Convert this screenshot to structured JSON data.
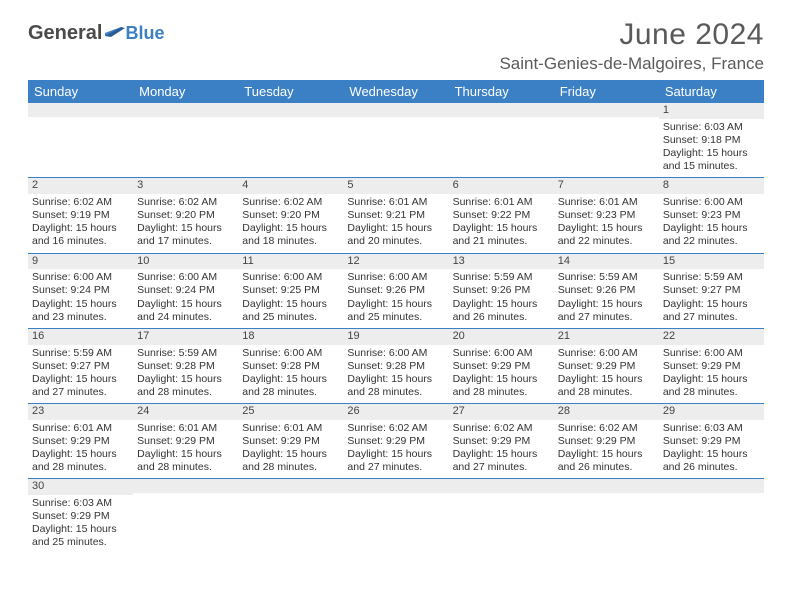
{
  "brand": {
    "general": "General",
    "blue": "Blue"
  },
  "title": "June 2024",
  "location": "Saint-Genies-de-Malgoires, France",
  "colors": {
    "header_bg": "#3b7fc4",
    "header_text": "#ffffff",
    "daynum_bg": "#ededed",
    "cell_border": "#3b7fc4",
    "page_bg": "#ffffff",
    "body_text": "#333333",
    "title_text": "#5a5a5a"
  },
  "columns": [
    "Sunday",
    "Monday",
    "Tuesday",
    "Wednesday",
    "Thursday",
    "Friday",
    "Saturday"
  ],
  "weeks": [
    [
      null,
      null,
      null,
      null,
      null,
      null,
      {
        "n": "1",
        "sr": "6:03 AM",
        "ss": "9:18 PM",
        "dh": 15,
        "dm": 15
      }
    ],
    [
      {
        "n": "2",
        "sr": "6:02 AM",
        "ss": "9:19 PM",
        "dh": 15,
        "dm": 16
      },
      {
        "n": "3",
        "sr": "6:02 AM",
        "ss": "9:20 PM",
        "dh": 15,
        "dm": 17
      },
      {
        "n": "4",
        "sr": "6:02 AM",
        "ss": "9:20 PM",
        "dh": 15,
        "dm": 18
      },
      {
        "n": "5",
        "sr": "6:01 AM",
        "ss": "9:21 PM",
        "dh": 15,
        "dm": 20
      },
      {
        "n": "6",
        "sr": "6:01 AM",
        "ss": "9:22 PM",
        "dh": 15,
        "dm": 21
      },
      {
        "n": "7",
        "sr": "6:01 AM",
        "ss": "9:23 PM",
        "dh": 15,
        "dm": 22
      },
      {
        "n": "8",
        "sr": "6:00 AM",
        "ss": "9:23 PM",
        "dh": 15,
        "dm": 22
      }
    ],
    [
      {
        "n": "9",
        "sr": "6:00 AM",
        "ss": "9:24 PM",
        "dh": 15,
        "dm": 23
      },
      {
        "n": "10",
        "sr": "6:00 AM",
        "ss": "9:24 PM",
        "dh": 15,
        "dm": 24
      },
      {
        "n": "11",
        "sr": "6:00 AM",
        "ss": "9:25 PM",
        "dh": 15,
        "dm": 25
      },
      {
        "n": "12",
        "sr": "6:00 AM",
        "ss": "9:26 PM",
        "dh": 15,
        "dm": 25
      },
      {
        "n": "13",
        "sr": "5:59 AM",
        "ss": "9:26 PM",
        "dh": 15,
        "dm": 26
      },
      {
        "n": "14",
        "sr": "5:59 AM",
        "ss": "9:26 PM",
        "dh": 15,
        "dm": 27
      },
      {
        "n": "15",
        "sr": "5:59 AM",
        "ss": "9:27 PM",
        "dh": 15,
        "dm": 27
      }
    ],
    [
      {
        "n": "16",
        "sr": "5:59 AM",
        "ss": "9:27 PM",
        "dh": 15,
        "dm": 27
      },
      {
        "n": "17",
        "sr": "5:59 AM",
        "ss": "9:28 PM",
        "dh": 15,
        "dm": 28
      },
      {
        "n": "18",
        "sr": "6:00 AM",
        "ss": "9:28 PM",
        "dh": 15,
        "dm": 28
      },
      {
        "n": "19",
        "sr": "6:00 AM",
        "ss": "9:28 PM",
        "dh": 15,
        "dm": 28
      },
      {
        "n": "20",
        "sr": "6:00 AM",
        "ss": "9:29 PM",
        "dh": 15,
        "dm": 28
      },
      {
        "n": "21",
        "sr": "6:00 AM",
        "ss": "9:29 PM",
        "dh": 15,
        "dm": 28
      },
      {
        "n": "22",
        "sr": "6:00 AM",
        "ss": "9:29 PM",
        "dh": 15,
        "dm": 28
      }
    ],
    [
      {
        "n": "23",
        "sr": "6:01 AM",
        "ss": "9:29 PM",
        "dh": 15,
        "dm": 28
      },
      {
        "n": "24",
        "sr": "6:01 AM",
        "ss": "9:29 PM",
        "dh": 15,
        "dm": 28
      },
      {
        "n": "25",
        "sr": "6:01 AM",
        "ss": "9:29 PM",
        "dh": 15,
        "dm": 28
      },
      {
        "n": "26",
        "sr": "6:02 AM",
        "ss": "9:29 PM",
        "dh": 15,
        "dm": 27
      },
      {
        "n": "27",
        "sr": "6:02 AM",
        "ss": "9:29 PM",
        "dh": 15,
        "dm": 27
      },
      {
        "n": "28",
        "sr": "6:02 AM",
        "ss": "9:29 PM",
        "dh": 15,
        "dm": 26
      },
      {
        "n": "29",
        "sr": "6:03 AM",
        "ss": "9:29 PM",
        "dh": 15,
        "dm": 26
      }
    ],
    [
      {
        "n": "30",
        "sr": "6:03 AM",
        "ss": "9:29 PM",
        "dh": 15,
        "dm": 25
      },
      null,
      null,
      null,
      null,
      null,
      null
    ]
  ],
  "labels": {
    "sunrise": "Sunrise:",
    "sunset": "Sunset:",
    "daylight": "Daylight:",
    "hours": "hours",
    "and": "and",
    "minutes": "minutes."
  }
}
